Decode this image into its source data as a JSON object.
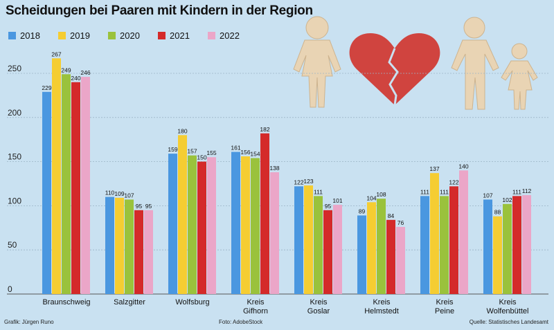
{
  "chart_data": {
    "type": "bar",
    "title": "Scheidungen bei Paaren mit Kindern in der Region",
    "categories": [
      [
        "Braunschweig"
      ],
      [
        "Salzgitter"
      ],
      [
        "Wolfsburg"
      ],
      [
        "Kreis",
        "Gifhorn"
      ],
      [
        "Kreis",
        "Goslar"
      ],
      [
        "Kreis",
        "Helmstedt"
      ],
      [
        "Kreis",
        "Peine"
      ],
      [
        "Kreis",
        "Wolfenbüttel"
      ]
    ],
    "series": [
      {
        "name": "2018",
        "color": "#4a97e0",
        "values": [
          229,
          110,
          159,
          161,
          122,
          89,
          111,
          107
        ]
      },
      {
        "name": "2019",
        "color": "#f5cd32",
        "values": [
          267,
          109,
          180,
          156,
          123,
          104,
          137,
          88
        ]
      },
      {
        "name": "2020",
        "color": "#9ac23c",
        "values": [
          249,
          107,
          157,
          154,
          111,
          108,
          111,
          102
        ]
      },
      {
        "name": "2021",
        "color": "#d42a2a",
        "values": [
          240,
          95,
          150,
          182,
          95,
          84,
          122,
          111
        ]
      },
      {
        "name": "2022",
        "color": "#eba6c8",
        "values": [
          246,
          95,
          155,
          138,
          101,
          76,
          140,
          112
        ]
      }
    ],
    "yticks": [
      0,
      50,
      100,
      150,
      200,
      250
    ],
    "ylim": [
      0,
      280
    ],
    "grid": true,
    "legend": "top-left"
  },
  "credits": {
    "graphic": "Grafik: Jürgen Runo",
    "photo": "Foto: AdobeStock",
    "source": "Quelle: Statistisches Landesamt"
  },
  "illustration": {
    "description_icons": [
      "woman-figure-icon",
      "broken-heart-icon",
      "man-figure-icon",
      "child-figure-icon"
    ]
  }
}
